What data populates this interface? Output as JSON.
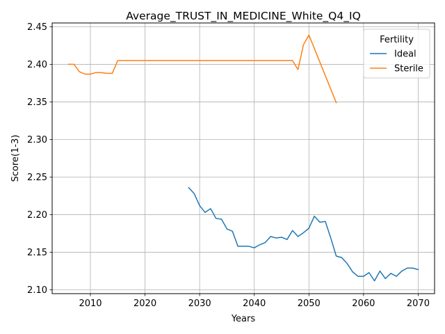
{
  "chart_data": {
    "type": "line",
    "title": "Average_TRUST_IN_MEDICINE_White_Q4_IQ",
    "xlabel": "Years",
    "ylabel": "Score(1-3)",
    "xlim": [
      2003,
      2073
    ],
    "ylim": [
      2.095,
      2.455
    ],
    "xticks": [
      2010,
      2020,
      2030,
      2040,
      2050,
      2060,
      2070
    ],
    "yticks": [
      "2.10",
      "2.15",
      "2.20",
      "2.25",
      "2.30",
      "2.35",
      "2.40",
      "2.45"
    ],
    "grid": true,
    "legend": {
      "title": "Fertility",
      "position": "top-right"
    },
    "series": [
      {
        "name": "Ideal",
        "color": "#1f77b4",
        "x": [
          2028,
          2029,
          2030,
          2031,
          2032,
          2033,
          2034,
          2035,
          2036,
          2037,
          2038,
          2039,
          2040,
          2041,
          2042,
          2043,
          2044,
          2045,
          2046,
          2047,
          2048,
          2049,
          2050,
          2051,
          2052,
          2053,
          2054,
          2055,
          2056,
          2057,
          2058,
          2059,
          2060,
          2061,
          2062,
          2063,
          2064,
          2065,
          2066,
          2067,
          2068,
          2069,
          2070
        ],
        "y": [
          2.236,
          2.228,
          2.212,
          2.203,
          2.208,
          2.195,
          2.194,
          2.181,
          2.178,
          2.158,
          2.158,
          2.158,
          2.156,
          2.16,
          2.163,
          2.171,
          2.169,
          2.17,
          2.167,
          2.179,
          2.171,
          2.176,
          2.182,
          2.198,
          2.19,
          2.191,
          2.169,
          2.145,
          2.143,
          2.135,
          2.124,
          2.118,
          2.118,
          2.123,
          2.112,
          2.125,
          2.115,
          2.122,
          2.118,
          2.125,
          2.129,
          2.129,
          2.127
        ]
      },
      {
        "name": "Sterile",
        "color": "#ff7f0e",
        "x": [
          2006,
          2007,
          2008,
          2009,
          2010,
          2011,
          2012,
          2013,
          2014,
          2015,
          2016,
          2047,
          2048,
          2049,
          2050,
          2055
        ],
        "y": [
          2.4,
          2.4,
          2.39,
          2.387,
          2.387,
          2.389,
          2.389,
          2.388,
          2.388,
          2.405,
          2.405,
          2.405,
          2.393,
          2.426,
          2.439,
          2.349
        ]
      }
    ]
  }
}
